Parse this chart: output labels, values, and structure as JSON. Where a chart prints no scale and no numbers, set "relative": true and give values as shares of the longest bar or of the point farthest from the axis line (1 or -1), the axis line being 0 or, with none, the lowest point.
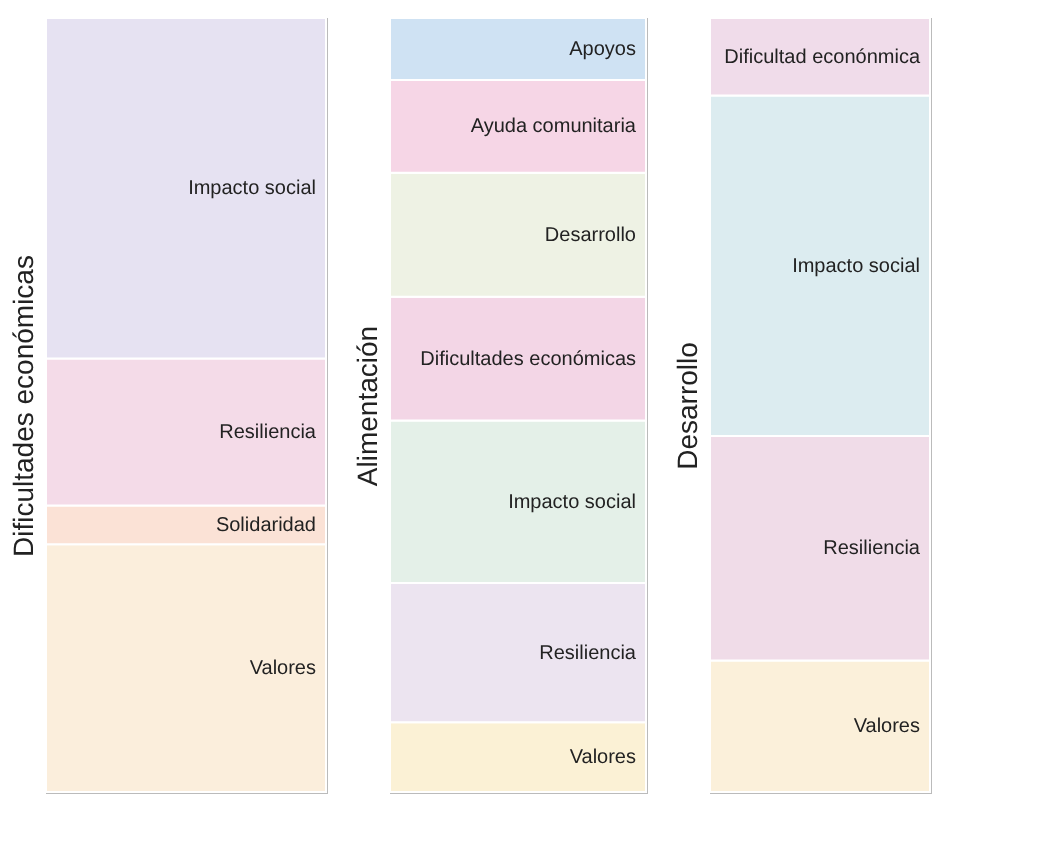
{
  "chart_data": [
    {
      "type": "bar",
      "ylabel": "Dificultades económicas",
      "categories": [
        null
      ],
      "stacked": true,
      "relative": true,
      "series": [
        {
          "name": "Valores",
          "color": "#fbeedc",
          "values": [
            0.32
          ]
        },
        {
          "name": "Solidaridad",
          "color": "#fbe2d6",
          "values": [
            0.05
          ]
        },
        {
          "name": "Resiliencia",
          "color": "#f4dbe8",
          "values": [
            0.19
          ]
        },
        {
          "name": "Impacto social",
          "color": "#e6e2f2",
          "values": [
            0.44
          ]
        }
      ]
    },
    {
      "type": "bar",
      "ylabel": "Alimentación",
      "categories": [
        null
      ],
      "stacked": true,
      "relative": true,
      "series": [
        {
          "name": "Valores",
          "color": "#fbf1d5",
          "values": [
            0.09
          ]
        },
        {
          "name": "Resiliencia",
          "color": "#ece4f0",
          "values": [
            0.18
          ]
        },
        {
          "name": "Impacto social",
          "color": "#e4f0e8",
          "values": [
            0.21
          ]
        },
        {
          "name": "Dificultades económicas",
          "color": "#f3d6e6",
          "values": [
            0.16
          ]
        },
        {
          "name": "Desarrollo",
          "color": "#eef2e4",
          "values": [
            0.16
          ]
        },
        {
          "name": "Ayuda comunitaria",
          "color": "#f6d6e6",
          "values": [
            0.12
          ]
        },
        {
          "name": "Apoyos",
          "color": "#cfe2f3",
          "values": [
            0.08
          ]
        }
      ]
    },
    {
      "type": "bar",
      "ylabel": "Desarrollo",
      "categories": [
        null
      ],
      "stacked": true,
      "relative": true,
      "series": [
        {
          "name": "Valores",
          "color": "#fbf0da",
          "values": [
            0.17
          ]
        },
        {
          "name": "Resiliencia",
          "color": "#f0dce8",
          "values": [
            0.29
          ]
        },
        {
          "name": "Impacto social",
          "color": "#dcecf0",
          "values": [
            0.44
          ]
        },
        {
          "name": "Dificultad econónmica",
          "color": "#f0dcea",
          "values": [
            0.1
          ]
        }
      ]
    }
  ]
}
